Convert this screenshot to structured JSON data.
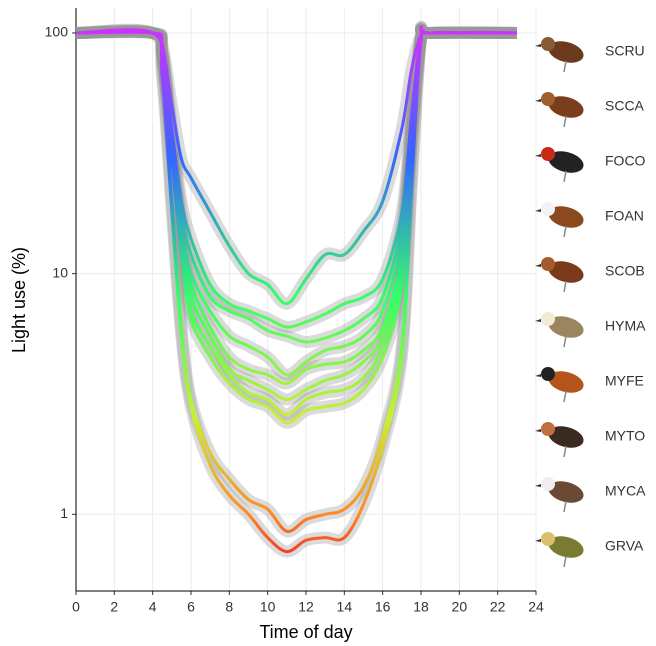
{
  "chart_data": {
    "type": "line",
    "x_label": "Time of day",
    "y_label": "Light use (%)",
    "x": [
      0,
      4,
      4.5,
      5,
      5.5,
      6,
      7,
      8,
      9,
      10,
      11,
      12,
      13,
      14,
      15,
      16,
      17,
      17.5,
      18,
      18.5,
      23
    ],
    "series": [
      {
        "name": "SCRU",
        "values": [
          100,
          100,
          90,
          50,
          30,
          25,
          18,
          13,
          10,
          9,
          7.5,
          9.5,
          12,
          12,
          15,
          20,
          40,
          70,
          98,
          100,
          100
        ]
      },
      {
        "name": "SCCA",
        "values": [
          100,
          100,
          85,
          40,
          20,
          14,
          9,
          7.5,
          7,
          6.5,
          6,
          6.3,
          6.8,
          7.5,
          8,
          9.5,
          18,
          45,
          96,
          100,
          100
        ]
      },
      {
        "name": "FOCO",
        "values": [
          100,
          100,
          85,
          38,
          18,
          12,
          8,
          7,
          6.5,
          5.8,
          5.5,
          5.2,
          5.4,
          5.8,
          6.5,
          8,
          16,
          42,
          96,
          100,
          100
        ]
      },
      {
        "name": "FOAN",
        "values": [
          100,
          100,
          82,
          35,
          16,
          10,
          7,
          5.5,
          5,
          4.5,
          3.8,
          4.3,
          4.8,
          5,
          5.5,
          7,
          14,
          40,
          95,
          100,
          100
        ]
      },
      {
        "name": "SCOB",
        "values": [
          100,
          100,
          82,
          34,
          15,
          9,
          6,
          4.5,
          4,
          3.8,
          3.5,
          4,
          4.2,
          4.3,
          4.8,
          6,
          12,
          38,
          95,
          100,
          100
        ]
      },
      {
        "name": "HYMA",
        "values": [
          100,
          100,
          80,
          33,
          14,
          8,
          5.5,
          4,
          3.6,
          3.3,
          3,
          3.3,
          3.6,
          3.8,
          4.3,
          5.5,
          11,
          36,
          95,
          100,
          100
        ]
      },
      {
        "name": "MYFE",
        "values": [
          100,
          100,
          80,
          32,
          13,
          7,
          5,
          3.8,
          3.2,
          3,
          2.6,
          3,
          3.2,
          3.3,
          3.7,
          5,
          10,
          35,
          95,
          100,
          100
        ]
      },
      {
        "name": "MYTO",
        "values": [
          100,
          100,
          78,
          30,
          12,
          6.5,
          4.5,
          3.5,
          3,
          2.8,
          2.4,
          2.7,
          2.8,
          2.9,
          3.3,
          4.5,
          9,
          33,
          94,
          100,
          100
        ]
      },
      {
        "name": "MYCA",
        "values": [
          100,
          100,
          70,
          20,
          6,
          3,
          1.8,
          1.4,
          1.15,
          1.05,
          0.85,
          0.95,
          1,
          1.05,
          1.3,
          2.1,
          5,
          25,
          94,
          100,
          100
        ]
      },
      {
        "name": "GRVA",
        "values": [
          100,
          100,
          65,
          18,
          5.5,
          2.8,
          1.6,
          1.2,
          1,
          0.8,
          0.7,
          0.78,
          0.8,
          0.8,
          1.1,
          1.9,
          4.5,
          22,
          93,
          100,
          100
        ]
      }
    ],
    "color_scale": [
      {
        "value": 100,
        "color": "#cc33ff"
      },
      {
        "value": 30,
        "color": "#3366ff"
      },
      {
        "value": 8,
        "color": "#33ff66"
      },
      {
        "value": 2.5,
        "color": "#ccee33"
      },
      {
        "value": 1,
        "color": "#ff8822"
      },
      {
        "value": 0.6,
        "color": "#ee2222"
      }
    ],
    "xlim": [
      0,
      24
    ],
    "xticks": [
      0,
      2,
      4,
      6,
      8,
      10,
      12,
      14,
      16,
      18,
      20,
      22,
      24
    ],
    "ylim": [
      0.48,
      127
    ],
    "yticks": [
      1,
      10,
      100
    ],
    "log_y": true,
    "grid": true
  }
}
